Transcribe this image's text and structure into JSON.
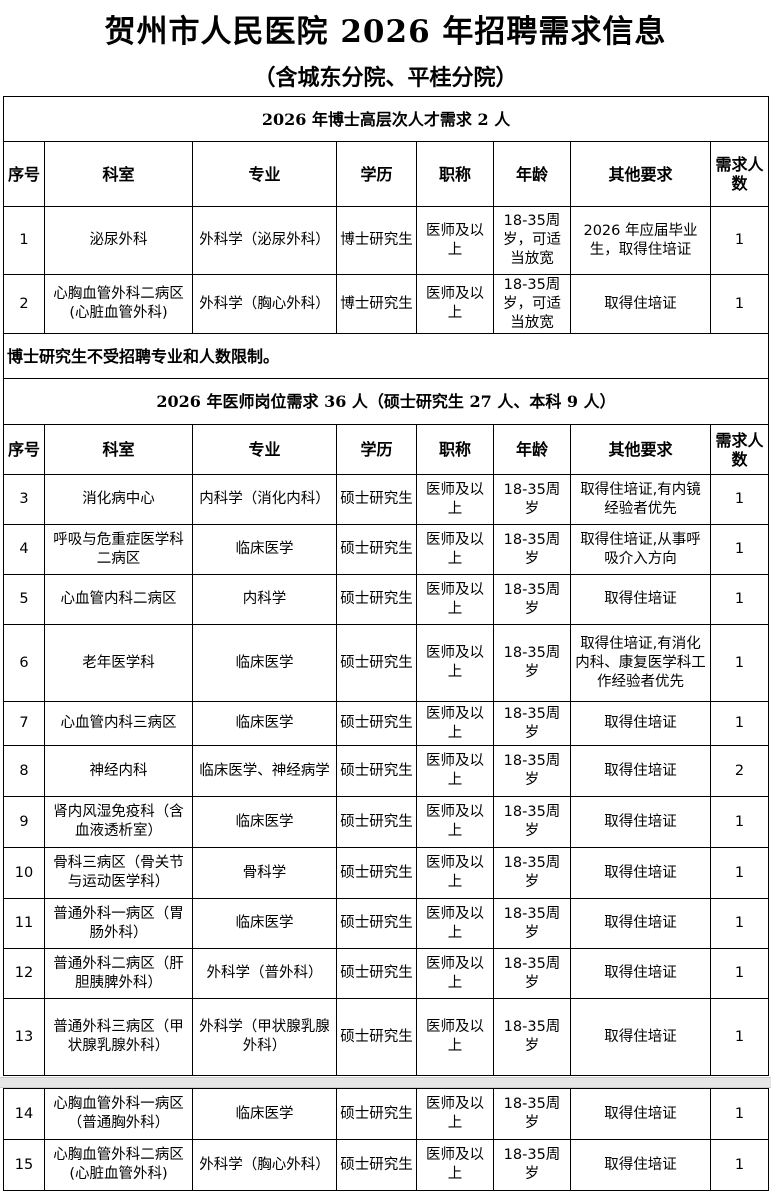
{
  "title": "贺州市人民医院 2026 年招聘需求信息",
  "subtitle": "（含城东分院、平桂分院）",
  "headers": [
    "序号",
    "科室",
    "专业",
    "学历",
    "职称",
    "年龄",
    "其他要求",
    "需求人数"
  ],
  "section1": {
    "heading": "2026 年博士高层次人才需求 2 人",
    "rows": [
      [
        "1",
        "泌尿外科",
        "外科学（泌尿外科）",
        "博士研究生",
        "医师及以上",
        "18-35周岁，可适当放宽",
        "2026 年应届毕业生，取得住培证",
        "1"
      ],
      [
        "2",
        "心胸血管外科二病区(心脏血管外科)",
        "外科学（胸心外科）",
        "博士研究生",
        "医师及以上",
        "18-35周岁，可适当放宽",
        "取得住培证",
        "1"
      ]
    ],
    "note": "博士研究生不受招聘专业和人数限制。"
  },
  "section2": {
    "heading": "2026 年医师岗位需求 36 人（硕士研究生 27 人、本科 9 人）",
    "rows": [
      [
        "3",
        "消化病中心",
        "内科学（消化内科）",
        "硕士研究生",
        "医师及以上",
        "18-35周岁",
        "取得住培证,有内镜经验者优先",
        "1"
      ],
      [
        "4",
        "呼吸与危重症医学科二病区",
        "临床医学",
        "硕士研究生",
        "医师及以上",
        "18-35周岁",
        "取得住培证,从事呼吸介入方向",
        "1"
      ],
      [
        "5",
        "心血管内科二病区",
        "内科学",
        "硕士研究生",
        "医师及以上",
        "18-35周岁",
        "取得住培证",
        "1"
      ],
      [
        "6",
        "老年医学科",
        "临床医学",
        "硕士研究生",
        "医师及以上",
        "18-35周岁",
        "取得住培证,有消化内科、康复医学科工作经验者优先",
        "1"
      ],
      [
        "7",
        "心血管内科三病区",
        "临床医学",
        "硕士研究生",
        "医师及以上",
        "18-35周岁",
        "取得住培证",
        "1"
      ],
      [
        "8",
        "神经内科",
        "临床医学、神经病学",
        "硕士研究生",
        "医师及以上",
        "18-35周岁",
        "取得住培证",
        "2"
      ],
      [
        "9",
        "肾内风湿免疫科（含血液透析室）",
        "临床医学",
        "硕士研究生",
        "医师及以上",
        "18-35周岁",
        "取得住培证",
        "1"
      ],
      [
        "10",
        "骨科三病区（骨关节与运动医学科）",
        "骨科学",
        "硕士研究生",
        "医师及以上",
        "18-35周岁",
        "取得住培证",
        "1"
      ],
      [
        "11",
        "普通外科一病区（胃肠外科）",
        "临床医学",
        "硕士研究生",
        "医师及以上",
        "18-35周岁",
        "取得住培证",
        "1"
      ],
      [
        "12",
        "普通外科二病区（肝胆胰脾外科）",
        "外科学（普外科）",
        "硕士研究生",
        "医师及以上",
        "18-35周岁",
        "取得住培证",
        "1"
      ],
      [
        "13",
        "普通外科三病区（甲状腺乳腺外科）",
        "外科学（甲状腺乳腺外科）",
        "硕士研究生",
        "医师及以上",
        "18-35周岁",
        "取得住培证",
        "1"
      ]
    ]
  },
  "continued_rows": [
    [
      "14",
      "心胸血管外科一病区（普通胸外科）",
      "临床医学",
      "硕士研究生",
      "医师及以上",
      "18-35周岁",
      "取得住培证",
      "1"
    ],
    [
      "15",
      "心胸血管外科二病区(心脏血管外科)",
      "外科学（胸心外科）",
      "硕士研究生",
      "医师及以上",
      "18-35周岁",
      "取得住培证",
      "1"
    ]
  ]
}
